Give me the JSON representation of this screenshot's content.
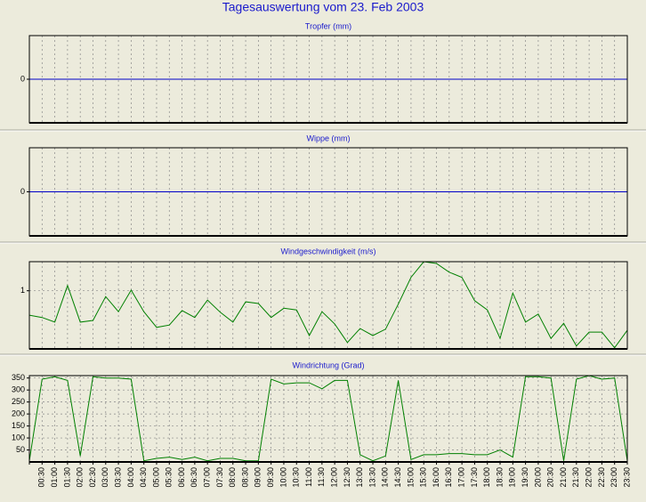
{
  "title": "Tagesauswertung vom 23. Feb 2003",
  "chart_data": [
    {
      "type": "line",
      "title": "Tropfer (mm)",
      "color": "#0000c8",
      "values": [
        0,
        0,
        0,
        0,
        0,
        0,
        0,
        0,
        0,
        0,
        0,
        0,
        0,
        0,
        0,
        0,
        0,
        0,
        0,
        0,
        0,
        0,
        0,
        0,
        0,
        0,
        0,
        0,
        0,
        0,
        0,
        0,
        0,
        0,
        0,
        0,
        0,
        0,
        0,
        0,
        0,
        0,
        0,
        0,
        0,
        0,
        0,
        0
      ],
      "ylim": [
        -1,
        1
      ],
      "yticks": [
        0
      ],
      "grid": true
    },
    {
      "type": "line",
      "title": "Wippe (mm)",
      "color": "#0000c8",
      "values": [
        0,
        0,
        0,
        0,
        0,
        0,
        0,
        0,
        0,
        0,
        0,
        0,
        0,
        0,
        0,
        0,
        0,
        0,
        0,
        0,
        0,
        0,
        0,
        0,
        0,
        0,
        0,
        0,
        0,
        0,
        0,
        0,
        0,
        0,
        0,
        0,
        0,
        0,
        0,
        0,
        0,
        0,
        0,
        0,
        0,
        0,
        0,
        0
      ],
      "ylim": [
        -1,
        1
      ],
      "yticks": [
        0
      ],
      "grid": true
    },
    {
      "type": "line",
      "title": "Windgeschwindigkeit (m/s)",
      "color": "#008000",
      "values": [
        0.58,
        0.54,
        0.46,
        1.09,
        0.46,
        0.49,
        0.9,
        0.64,
        1.01,
        0.64,
        0.37,
        0.41,
        0.66,
        0.54,
        0.84,
        0.63,
        0.46,
        0.81,
        0.78,
        0.54,
        0.7,
        0.67,
        0.23,
        0.64,
        0.43,
        0.11,
        0.35,
        0.23,
        0.34,
        0.77,
        1.23,
        1.5,
        1.47,
        1.32,
        1.23,
        0.83,
        0.67,
        0.18,
        0.96,
        0.46,
        0.6,
        0.18,
        0.44,
        0.05,
        0.29,
        0.29,
        0.02,
        0.32
      ],
      "ylim": [
        0,
        1.5
      ],
      "yticks": [
        1
      ],
      "grid": true
    },
    {
      "type": "line",
      "title": "Windrichtung (Grad)",
      "color": "#008000",
      "categories": [
        null,
        "00:30",
        "01:00",
        "01:30",
        "02:00",
        "02:30",
        "03:00",
        "03:30",
        "04:00",
        "04:30",
        "05:00",
        "05:30",
        "06:00",
        "06:30",
        "07:00",
        "07:30",
        "08:00",
        "08:30",
        "09:00",
        "09:30",
        "10:00",
        "10:30",
        "11:00",
        "11:30",
        "12:00",
        "12:30",
        "13:00",
        "13:30",
        "14:00",
        "14:30",
        "15:00",
        "15:30",
        "16:00",
        "16:30",
        "17:00",
        "17:30",
        "18:00",
        "18:30",
        "19:00",
        "19:30",
        "20:00",
        "20:30",
        "21:00",
        "21:30",
        "22:00",
        "22:30",
        "23:00",
        "23:30"
      ],
      "values": [
        5,
        345,
        355,
        340,
        25,
        355,
        350,
        350,
        345,
        5,
        15,
        20,
        10,
        20,
        5,
        15,
        15,
        5,
        5,
        345,
        325,
        330,
        330,
        305,
        340,
        340,
        30,
        5,
        25,
        340,
        10,
        30,
        30,
        35,
        35,
        30,
        30,
        50,
        20,
        355,
        355,
        350,
        5,
        345,
        360,
        345,
        350,
        5
      ],
      "ylim": [
        0,
        360
      ],
      "yticks": [
        50,
        100,
        150,
        200,
        250,
        300,
        350
      ],
      "grid": true
    }
  ]
}
